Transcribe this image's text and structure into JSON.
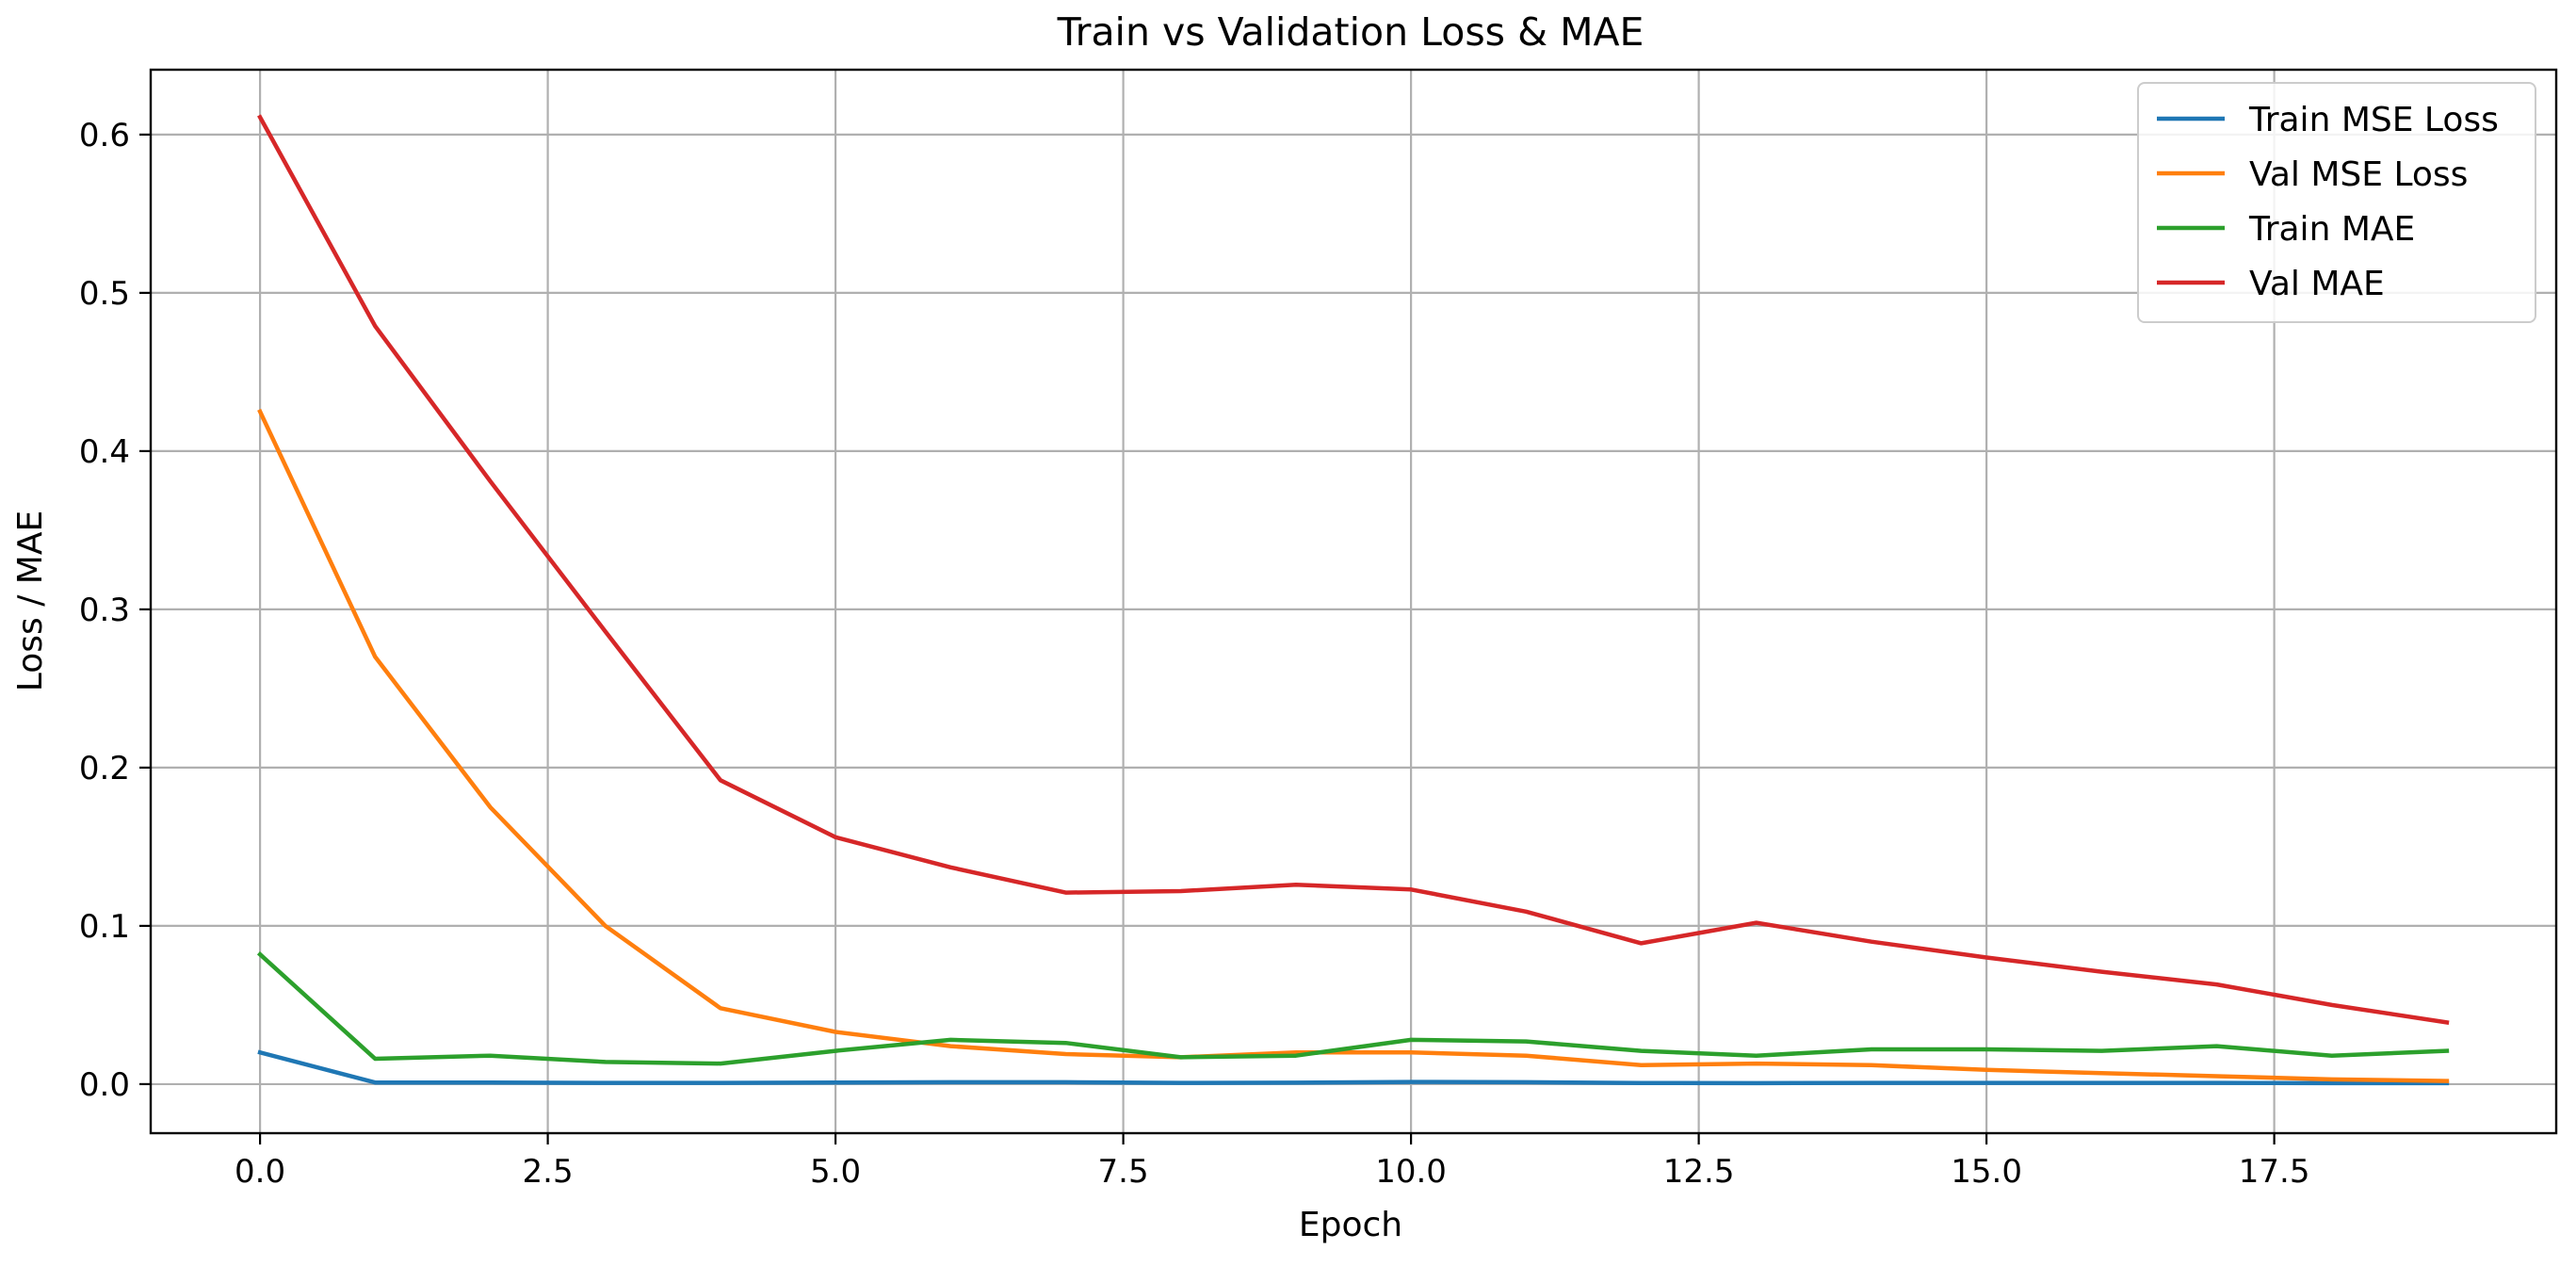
{
  "chart_data": {
    "type": "line",
    "title": "Train vs Validation Loss & MAE",
    "xlabel": "Epoch",
    "ylabel": "Loss / MAE",
    "xlim": [
      -0.95,
      19.95
    ],
    "ylim": [
      -0.031,
      0.641
    ],
    "grid": true,
    "legend_position": "top-right",
    "x": [
      0,
      1,
      2,
      3,
      4,
      5,
      6,
      7,
      8,
      9,
      10,
      11,
      12,
      13,
      14,
      15,
      16,
      17,
      18,
      19
    ],
    "x_ticks": [
      0.0,
      2.5,
      5.0,
      7.5,
      10.0,
      12.5,
      15.0,
      17.5
    ],
    "x_tick_labels": [
      "0.0",
      "2.5",
      "5.0",
      "7.5",
      "10.0",
      "12.5",
      "15.0",
      "17.5"
    ],
    "y_ticks": [
      0.0,
      0.1,
      0.2,
      0.3,
      0.4,
      0.5,
      0.6
    ],
    "y_tick_labels": [
      "0.0",
      "0.1",
      "0.2",
      "0.3",
      "0.4",
      "0.5",
      "0.6"
    ],
    "series": [
      {
        "name": "Train MSE Loss",
        "color": "#1f77b4",
        "values": [
          0.02,
          0.001,
          0.001,
          0.0008,
          0.0008,
          0.001,
          0.0012,
          0.0012,
          0.0008,
          0.0009,
          0.0014,
          0.0012,
          0.0007,
          0.0006,
          0.0008,
          0.0008,
          0.0008,
          0.0008,
          0.0006,
          0.0006
        ]
      },
      {
        "name": "Val MSE Loss",
        "color": "#ff7f0e",
        "values": [
          0.425,
          0.27,
          0.175,
          0.1,
          0.048,
          0.033,
          0.024,
          0.019,
          0.017,
          0.02,
          0.02,
          0.018,
          0.012,
          0.013,
          0.012,
          0.009,
          0.007,
          0.005,
          0.003,
          0.002
        ]
      },
      {
        "name": "Train MAE",
        "color": "#2ca02c",
        "values": [
          0.082,
          0.016,
          0.018,
          0.014,
          0.013,
          0.021,
          0.028,
          0.026,
          0.017,
          0.018,
          0.028,
          0.027,
          0.021,
          0.018,
          0.022,
          0.022,
          0.021,
          0.024,
          0.018,
          0.021
        ]
      },
      {
        "name": "Val MAE",
        "color": "#d62728",
        "values": [
          0.611,
          0.479,
          0.381,
          0.286,
          0.192,
          0.156,
          0.137,
          0.121,
          0.122,
          0.126,
          0.123,
          0.109,
          0.089,
          0.102,
          0.09,
          0.08,
          0.071,
          0.063,
          0.05,
          0.039
        ]
      }
    ]
  }
}
